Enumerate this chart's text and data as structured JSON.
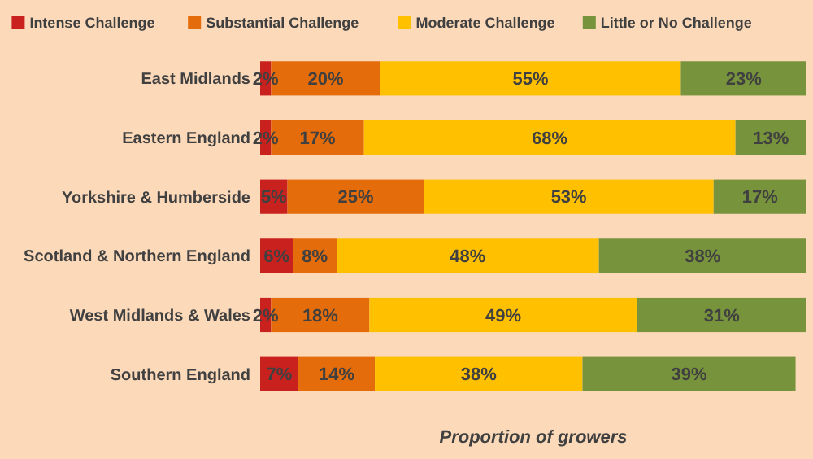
{
  "chart_data": {
    "type": "bar",
    "orientation": "horizontal",
    "stacked": true,
    "xlabel": "Proportion of growers",
    "legend": "top",
    "tick_labels": "y",
    "xlim": [
      0,
      100
    ],
    "categories": [
      "East Midlands",
      "Eastern England",
      "Yorkshire & Humberside",
      "Scotland & Northern England",
      "West Midlands & Wales",
      "Southern England"
    ],
    "series": [
      {
        "name": "Intense Challenge",
        "color": "#c9211e",
        "values": [
          2,
          2,
          5,
          6,
          2,
          7
        ],
        "value_labels": [
          "2%",
          "2%",
          "5%",
          "6%",
          "2%",
          "7%"
        ]
      },
      {
        "name": "Substantial Challenge",
        "color": "#e46c0a",
        "values": [
          20,
          17,
          25,
          8,
          18,
          14
        ],
        "value_labels": [
          "20%",
          "17%",
          "25%",
          "8%",
          "18%",
          "14%"
        ]
      },
      {
        "name": "Moderate Challenge",
        "color": "#ffc000",
        "values": [
          55,
          68,
          53,
          48,
          49,
          38
        ],
        "value_labels": [
          "55%",
          "68%",
          "53%",
          "48%",
          "49%",
          "38%"
        ]
      },
      {
        "name": "Little or No Challenge",
        "color": "#77933c",
        "values": [
          23,
          13,
          17,
          38,
          31,
          39
        ],
        "value_labels": [
          "23%",
          "13%",
          "17%",
          "38%",
          "31%",
          "39%"
        ]
      }
    ]
  }
}
